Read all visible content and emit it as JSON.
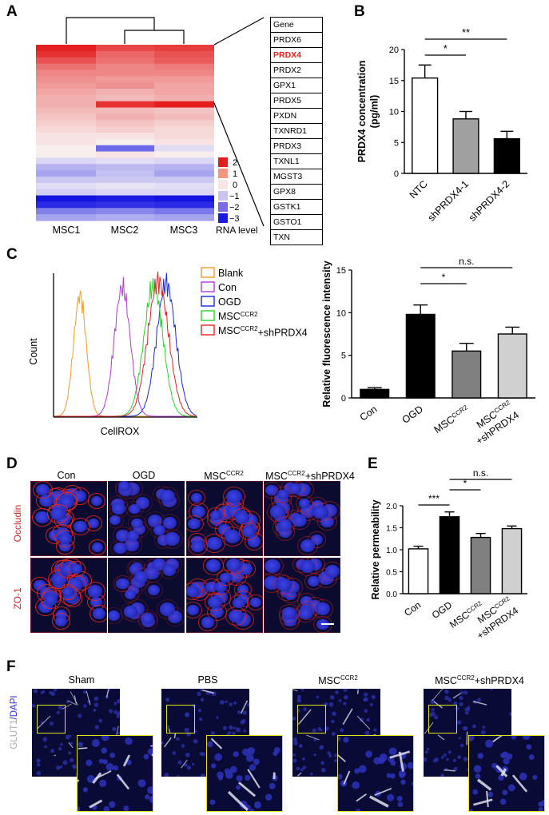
{
  "panels": {
    "A": "A",
    "B": "B",
    "C": "C",
    "D": "D",
    "E": "E",
    "F": "F"
  },
  "heatmap": {
    "columns": [
      "MSC1",
      "MSC2",
      "MSC3"
    ],
    "legend_title": "RNA level",
    "legend_ticks": [
      "2",
      "1",
      "0",
      "−1",
      "−2",
      "−3"
    ],
    "genes_header": "Gene",
    "genes": [
      "PRDX6",
      "PRDX4",
      "PRDX2",
      "GPX1",
      "PRDX5",
      "PXDN",
      "TXNRD1",
      "PRDX3",
      "TXNL1",
      "MGST3",
      "GPX8",
      "GSTK1",
      "GSTO1",
      "TXN"
    ],
    "highlight_gene": "PRDX4",
    "colors": {
      "high": "#e8201b",
      "low": "#1010e0",
      "mid": "#f5e8e8",
      "highlight": "#e8201b"
    }
  },
  "chart_B": {
    "type": "bar",
    "categories": [
      "NTC",
      "shPRDX4-1",
      "shPRDX4-2"
    ],
    "values": [
      15.4,
      8.8,
      5.6
    ],
    "errors": [
      2.1,
      1.2,
      1.2
    ],
    "fills": [
      "#ffffff",
      "#a0a0a0",
      "#000000"
    ],
    "ylabel_line1": "PRDX4 concentration",
    "ylabel_line2": "(pg/ml)",
    "ylim": [
      0,
      20
    ],
    "yticks": [
      "0",
      "5",
      "10",
      "15",
      "20"
    ],
    "sig": [
      {
        "from": 0,
        "to": 1,
        "label": "*"
      },
      {
        "from": 0,
        "to": 2,
        "label": "**"
      }
    ]
  },
  "flow_C": {
    "xlabel": "CellROX",
    "ylabel": "Count",
    "legend": [
      {
        "label": "Blank",
        "color": "#f29a2e"
      },
      {
        "label": "Con",
        "color": "#b23ad6"
      },
      {
        "label": "OGD",
        "color": "#1b2bd3"
      },
      {
        "label": "MSC",
        "sup": "CCR2",
        "color": "#2fcf2f"
      },
      {
        "label": "MSC",
        "sup": "CCR2",
        "suffix": "+shPRDX4",
        "color": "#e0262a"
      }
    ]
  },
  "chart_C": {
    "type": "bar",
    "categories": [
      "Con",
      "OGD",
      "MSC",
      "MSC"
    ],
    "cat_sups": [
      "",
      "",
      "CCR2",
      "CCR2"
    ],
    "cat_suffix": [
      "",
      "",
      "",
      "+shPRDX4"
    ],
    "values": [
      1.0,
      9.8,
      5.5,
      7.5
    ],
    "errors": [
      0.2,
      1.1,
      0.9,
      0.8
    ],
    "fills": [
      "#000000",
      "#000000",
      "#808080",
      "#d0d0d0"
    ],
    "ylabel": "Relative fluorescence intensity",
    "ylim": [
      0,
      15
    ],
    "yticks": [
      "0",
      "5",
      "10",
      "15"
    ],
    "sig": [
      {
        "from": 1,
        "to": 2,
        "label": "*"
      },
      {
        "from": 1,
        "to": 3,
        "label": "n.s."
      }
    ]
  },
  "micro_D": {
    "col_labels": [
      {
        "t": "Con"
      },
      {
        "t": "OGD"
      },
      {
        "t": "MSC",
        "sup": "CCR2"
      },
      {
        "t": "MSC",
        "sup": "CCR2",
        "suffix": "+shPRDX4"
      }
    ],
    "row_labels": [
      "Occludin",
      "ZO-1"
    ]
  },
  "chart_E": {
    "type": "bar",
    "categories": [
      "Con",
      "OGD",
      "MSC",
      "MSC"
    ],
    "cat_sups": [
      "",
      "",
      "CCR2",
      "CCR2"
    ],
    "cat_suffix": [
      "",
      "",
      "",
      "+shPRDX4"
    ],
    "values": [
      1.02,
      1.75,
      1.28,
      1.48
    ],
    "errors": [
      0.06,
      0.11,
      0.09,
      0.06
    ],
    "fills": [
      "#ffffff",
      "#000000",
      "#808080",
      "#d0d0d0"
    ],
    "ylabel": "Relative permeability",
    "ylim": [
      0.0,
      2.0
    ],
    "yticks": [
      "0.0",
      "0.5",
      "1.0",
      "1.5",
      "2.0"
    ],
    "sig": [
      {
        "from": 0,
        "to": 1,
        "label": "***"
      },
      {
        "from": 1,
        "to": 2,
        "label": "*"
      },
      {
        "from": 1,
        "to": 3,
        "label": "n.s."
      }
    ]
  },
  "micro_F": {
    "col_labels": [
      {
        "t": "Sham"
      },
      {
        "t": "PBS"
      },
      {
        "t": "MSC",
        "sup": "CCR2"
      },
      {
        "t": "MSC",
        "sup": "CCR2",
        "suffix": "+shPRDX4"
      }
    ],
    "stain_a": "GLUT1",
    "stain_sep": "/",
    "stain_b": "DAPI"
  }
}
